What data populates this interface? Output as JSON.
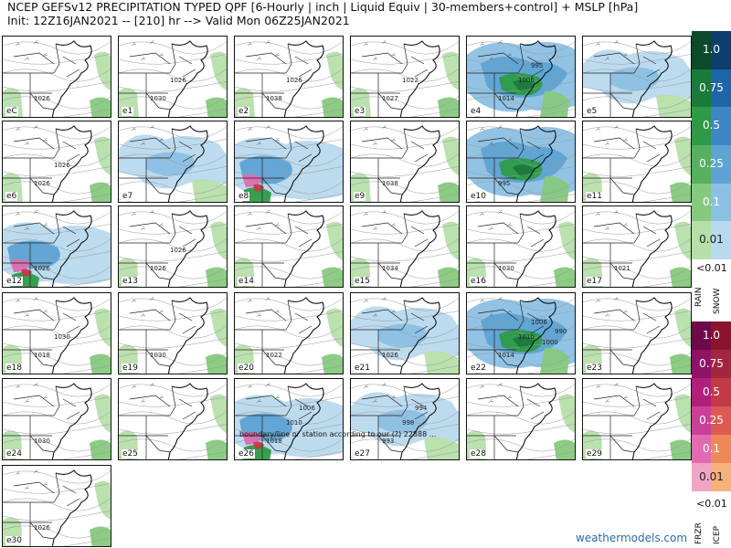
{
  "header": {
    "title_line1": "NCEP GEFSv12 PRECIPITATION TYPED QPF [6-Hourly | inch | Liquid Equiv | 30-members+control] + MSLP [hPa]",
    "title_line2": "Init: 12Z16JAN2021 -- [210] hr --> Valid Mon 06Z25JAN2021"
  },
  "panels": [
    {
      "label": "eC",
      "pressure": [
        "1026"
      ],
      "precip": "light"
    },
    {
      "label": "e1",
      "pressure": [
        "1030",
        "1026"
      ],
      "precip": "light"
    },
    {
      "label": "e2",
      "pressure": [
        "1038",
        "1026"
      ],
      "precip": "light"
    },
    {
      "label": "e3",
      "pressure": [
        "1027",
        "1022"
      ],
      "precip": "light"
    },
    {
      "label": "e4",
      "pressure": [
        "1014",
        "1006",
        "995"
      ],
      "precip": "heavy"
    },
    {
      "label": "e5",
      "pressure": [],
      "precip": "moderate"
    },
    {
      "label": "e6",
      "pressure": [
        "1026",
        "1026"
      ],
      "precip": "light"
    },
    {
      "label": "e7",
      "pressure": [],
      "precip": "moderate"
    },
    {
      "label": "e8",
      "pressure": [],
      "precip": "mixed"
    },
    {
      "label": "e9",
      "pressure": [
        "1038"
      ],
      "precip": "light"
    },
    {
      "label": "e10",
      "pressure": [
        "995"
      ],
      "precip": "heavy"
    },
    {
      "label": "e11",
      "pressure": [],
      "precip": "light"
    },
    {
      "label": "e12",
      "pressure": [
        "1026"
      ],
      "precip": "mixed"
    },
    {
      "label": "e13",
      "pressure": [
        "1026",
        "1026"
      ],
      "precip": "light"
    },
    {
      "label": "e14",
      "pressure": [],
      "precip": "light"
    },
    {
      "label": "e15",
      "pressure": [
        "1034"
      ],
      "precip": "light"
    },
    {
      "label": "e16",
      "pressure": [
        "1030"
      ],
      "precip": "light"
    },
    {
      "label": "e17",
      "pressure": [
        "1021"
      ],
      "precip": "light"
    },
    {
      "label": "e18",
      "pressure": [
        "1018",
        "1030"
      ],
      "precip": "light"
    },
    {
      "label": "e19",
      "pressure": [
        "1030"
      ],
      "precip": "light"
    },
    {
      "label": "e20",
      "pressure": [
        "1022"
      ],
      "precip": "light"
    },
    {
      "label": "e21",
      "pressure": [
        "1026"
      ],
      "precip": "moderate"
    },
    {
      "label": "e22",
      "pressure": [
        "1014",
        "1010",
        "1006",
        "1000",
        "990"
      ],
      "precip": "heavy"
    },
    {
      "label": "e23",
      "pressure": [],
      "precip": "light"
    },
    {
      "label": "e24",
      "pressure": [
        "1030"
      ],
      "precip": "light"
    },
    {
      "label": "e25",
      "pressure": [],
      "precip": "light"
    },
    {
      "label": "e26",
      "pressure": [
        "1018",
        "1010",
        "1006"
      ],
      "precip": "mixed"
    },
    {
      "label": "e27",
      "pressure": [
        "993",
        "998",
        "994"
      ],
      "precip": "moderate"
    },
    {
      "label": "e28",
      "pressure": [],
      "precip": "light"
    },
    {
      "label": "e29",
      "pressure": [],
      "precip": "light"
    },
    {
      "label": "e30",
      "pressure": [
        "1026"
      ],
      "precip": "light"
    }
  ],
  "panel_note": "boundary/line or station according to our (?) 22888 ...",
  "legend": {
    "rain_snow": {
      "values": [
        "1.0",
        "0.75",
        "0.5",
        "0.25",
        "0.1",
        "0.01"
      ],
      "rain_colors": [
        "#0b4a2a",
        "#1a7a3a",
        "#2e9a48",
        "#56b060",
        "#86c97e",
        "#b6dfaa"
      ],
      "snow_colors": [
        "#0d3e6e",
        "#1f66a8",
        "#3f86c4",
        "#5ea3d3",
        "#8cc0e3",
        "#b9d9ee"
      ],
      "below_label": "<0.01",
      "left_label": "RAIN",
      "right_label": "SNOW"
    },
    "frzr_icep": {
      "values": [
        "1.0",
        "0.75",
        "0.5",
        "0.25",
        "0.1",
        "0.01"
      ],
      "frzr_colors": [
        "#6e0a4a",
        "#8e1366",
        "#b0207a",
        "#cc3f98",
        "#e06bb0",
        "#f0a5c6"
      ],
      "icep_colors": [
        "#8a1430",
        "#a3263e",
        "#c23a46",
        "#dc5a52",
        "#ee8a5a",
        "#f6b27a"
      ],
      "below_label": "<0.01",
      "left_label": "FRZR",
      "right_label": "ICEP"
    }
  },
  "credit": "weathermodels.com"
}
